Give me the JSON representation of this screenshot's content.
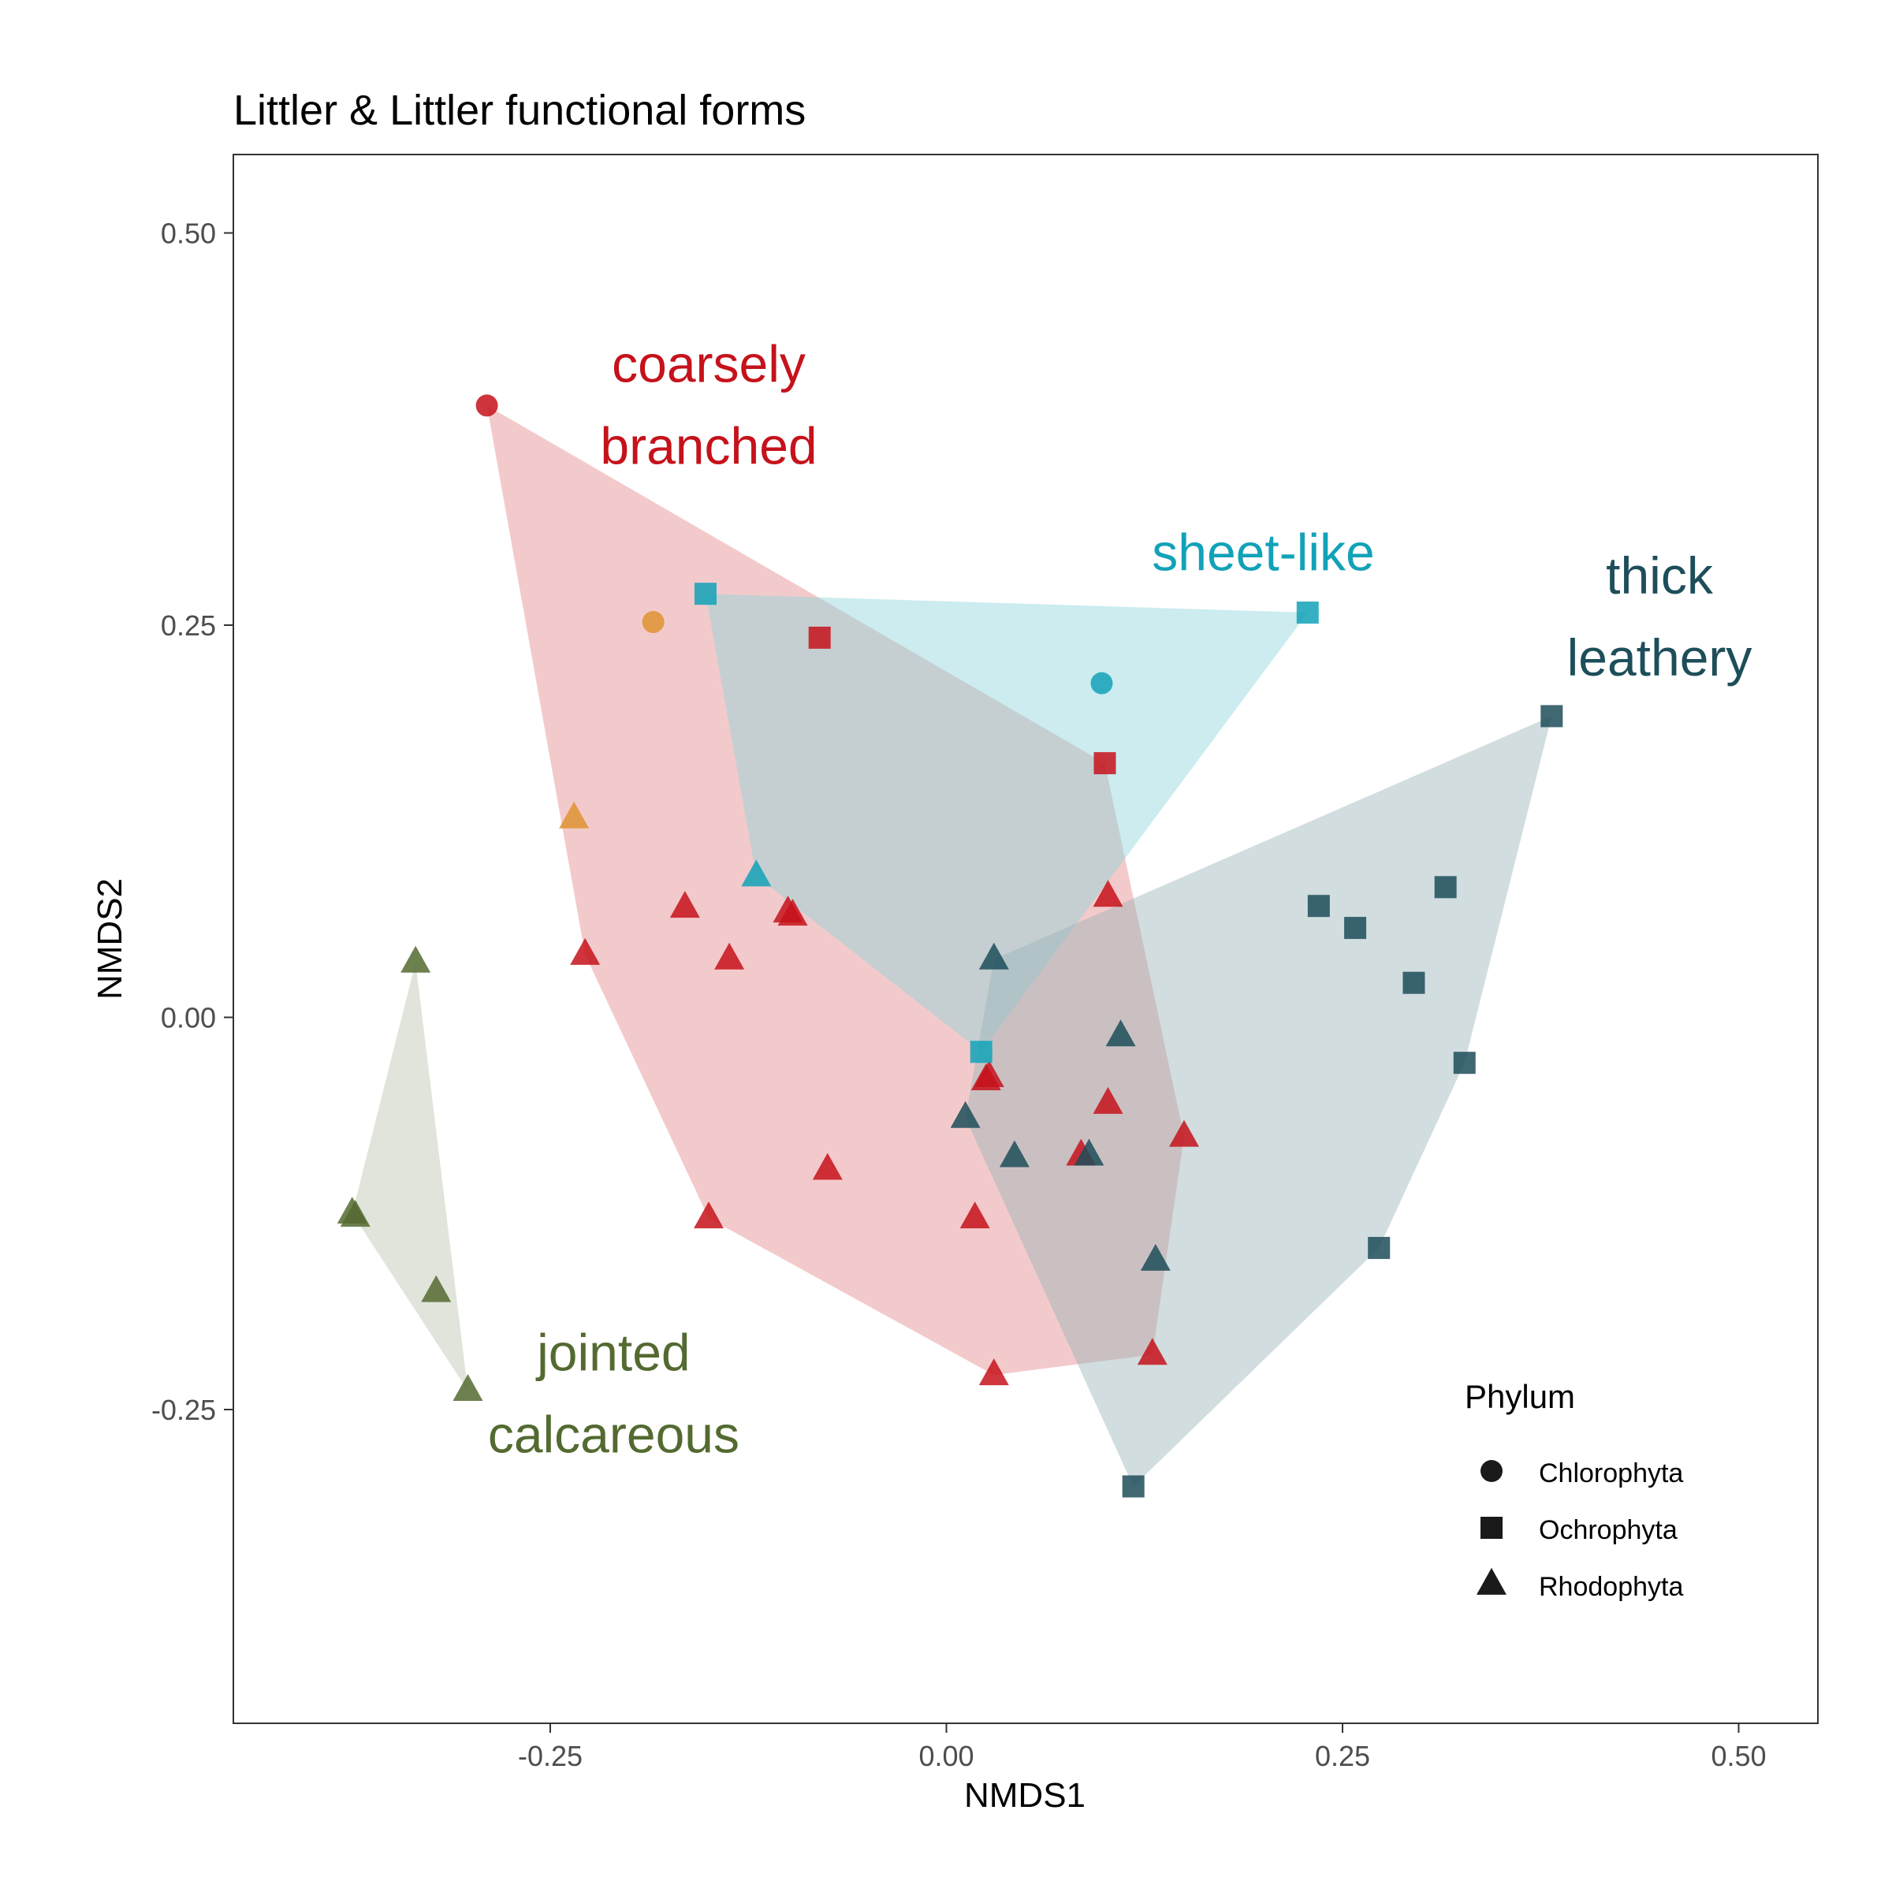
{
  "chart_data": {
    "type": "scatter",
    "title": "Littler & Littler functional forms",
    "xlabel": "NMDS1",
    "ylabel": "NMDS2",
    "xlim": [
      -0.45,
      0.55
    ],
    "ylim": [
      -0.45,
      0.55
    ],
    "x_ticks": [
      -0.25,
      0.0,
      0.25,
      0.5
    ],
    "y_ticks": [
      -0.25,
      0.0,
      0.25,
      0.5
    ],
    "x_tick_labels": [
      "-0.25",
      "0.00",
      "0.25",
      "0.50"
    ],
    "y_tick_labels": [
      "-0.25",
      "0.00",
      "0.25",
      "0.50"
    ],
    "grid": false,
    "legend": {
      "title": "Phylum",
      "position": "bottom-right",
      "entries": [
        {
          "label": "Chlorophyta",
          "shape": "circle"
        },
        {
          "label": "Ochrophyta",
          "shape": "square"
        },
        {
          "label": "Rhodophyta",
          "shape": "triangle"
        }
      ]
    },
    "groups": [
      {
        "name": "coarsely branched",
        "label_lines": [
          "coarsely",
          "branched"
        ],
        "color": "#c5121b",
        "hull_color": "#e58a8c",
        "label_pos": [
          -0.15,
          0.405
        ],
        "points": [
          {
            "x": -0.29,
            "y": 0.39,
            "shape": "circle"
          },
          {
            "x": -0.08,
            "y": 0.242,
            "shape": "square"
          },
          {
            "x": 0.1,
            "y": 0.162,
            "shape": "square"
          },
          {
            "x": -0.165,
            "y": 0.07,
            "shape": "triangle"
          },
          {
            "x": -0.228,
            "y": 0.04,
            "shape": "triangle"
          },
          {
            "x": -0.137,
            "y": 0.037,
            "shape": "triangle"
          },
          {
            "x": -0.1,
            "y": 0.067,
            "shape": "triangle"
          },
          {
            "x": -0.097,
            "y": 0.065,
            "shape": "triangle"
          },
          {
            "x": 0.102,
            "y": 0.077,
            "shape": "triangle"
          },
          {
            "x": 0.027,
            "y": -0.038,
            "shape": "triangle"
          },
          {
            "x": 0.025,
            "y": -0.04,
            "shape": "triangle"
          },
          {
            "x": 0.102,
            "y": -0.055,
            "shape": "triangle"
          },
          {
            "x": 0.085,
            "y": -0.088,
            "shape": "triangle"
          },
          {
            "x": 0.15,
            "y": -0.076,
            "shape": "triangle"
          },
          {
            "x": -0.075,
            "y": -0.097,
            "shape": "triangle"
          },
          {
            "x": -0.15,
            "y": -0.128,
            "shape": "triangle"
          },
          {
            "x": 0.018,
            "y": -0.128,
            "shape": "triangle"
          },
          {
            "x": 0.03,
            "y": -0.228,
            "shape": "triangle"
          },
          {
            "x": 0.13,
            "y": -0.215,
            "shape": "triangle"
          }
        ]
      },
      {
        "name": "sheet-like",
        "label_lines": [
          "sheet-like"
        ],
        "color": "#12a2b8",
        "hull_color": "#8ed4dc",
        "label_pos": [
          0.2,
          0.285
        ],
        "points": [
          {
            "x": 0.228,
            "y": 0.258,
            "shape": "square"
          },
          {
            "x": -0.152,
            "y": 0.27,
            "shape": "square"
          },
          {
            "x": 0.098,
            "y": 0.213,
            "shape": "circle"
          },
          {
            "x": -0.12,
            "y": 0.09,
            "shape": "triangle"
          },
          {
            "x": 0.022,
            "y": -0.022,
            "shape": "square"
          }
        ]
      },
      {
        "name": "thick leathery",
        "label_lines": [
          "thick",
          "leathery"
        ],
        "color": "#1d4e5a",
        "hull_color": "#98b4b8",
        "label_pos": [
          0.45,
          0.27
        ],
        "points": [
          {
            "x": 0.382,
            "y": 0.192,
            "shape": "square"
          },
          {
            "x": 0.315,
            "y": 0.083,
            "shape": "square"
          },
          {
            "x": 0.235,
            "y": 0.071,
            "shape": "square"
          },
          {
            "x": 0.258,
            "y": 0.057,
            "shape": "square"
          },
          {
            "x": 0.295,
            "y": 0.022,
            "shape": "square"
          },
          {
            "x": 0.327,
            "y": -0.029,
            "shape": "square"
          },
          {
            "x": 0.273,
            "y": -0.147,
            "shape": "square"
          },
          {
            "x": 0.118,
            "y": -0.299,
            "shape": "square"
          },
          {
            "x": 0.03,
            "y": 0.037,
            "shape": "triangle"
          },
          {
            "x": 0.11,
            "y": -0.012,
            "shape": "triangle"
          },
          {
            "x": 0.012,
            "y": -0.064,
            "shape": "triangle"
          },
          {
            "x": 0.043,
            "y": -0.089,
            "shape": "triangle"
          },
          {
            "x": 0.09,
            "y": -0.088,
            "shape": "triangle"
          },
          {
            "x": 0.132,
            "y": -0.155,
            "shape": "triangle"
          }
        ]
      },
      {
        "name": "jointed calcareous",
        "label_lines": [
          "jointed",
          "calcareous"
        ],
        "color": "#536a30",
        "hull_color": "#bcc4ac",
        "label_pos": [
          -0.21,
          -0.225
        ],
        "points": [
          {
            "x": -0.335,
            "y": 0.035,
            "shape": "triangle"
          },
          {
            "x": -0.375,
            "y": -0.125,
            "shape": "triangle"
          },
          {
            "x": -0.373,
            "y": -0.127,
            "shape": "triangle"
          },
          {
            "x": -0.322,
            "y": -0.175,
            "shape": "triangle"
          },
          {
            "x": -0.302,
            "y": -0.238,
            "shape": "triangle"
          }
        ]
      }
    ],
    "extra_points": [
      {
        "x": -0.185,
        "y": 0.252,
        "shape": "circle",
        "color": "#e0963a"
      },
      {
        "x": -0.235,
        "y": 0.127,
        "shape": "triangle",
        "color": "#e0963a"
      }
    ]
  }
}
